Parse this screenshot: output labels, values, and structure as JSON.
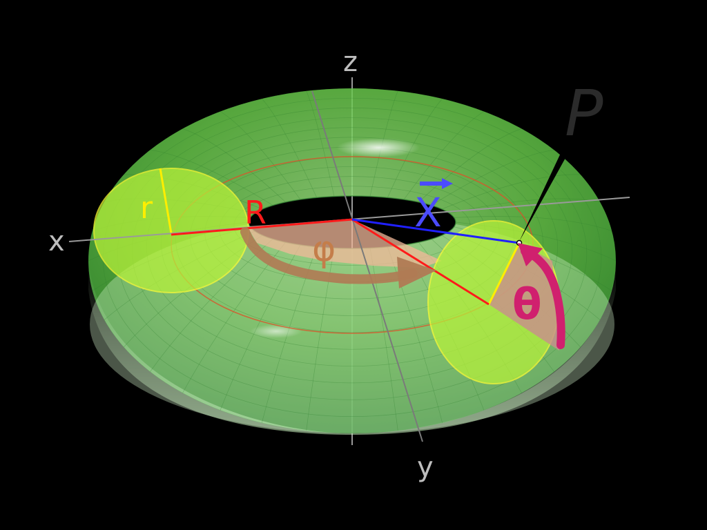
{
  "labels": {
    "z_axis": "z",
    "x_axis": "x",
    "y_axis": "y",
    "major_radius": "R",
    "minor_radius": "r",
    "point": "P",
    "position_vector": "X",
    "toroidal_angle": "φ",
    "poloidal_angle": "θ"
  },
  "colors": {
    "background": "#000000",
    "torus_fill": "#7ddc5c",
    "torus_mesh": "#2e7d2e",
    "cross_section": "#b8f23a",
    "cross_section_edge": "#ffff33",
    "major_radius_line": "#ff1a1a",
    "minor_radius_line": "#ffee00",
    "vector_line": "#2020ff",
    "vector_label": "#4b4bff",
    "phi_arrow": "#b07a54",
    "phi_sector": "#f2b89a",
    "theta_arrow": "#d0206e",
    "theta_sector": "#c98d8d",
    "axis": "#aaaaaa",
    "point_label": "#2b2b2b",
    "pointer": "#000000"
  }
}
